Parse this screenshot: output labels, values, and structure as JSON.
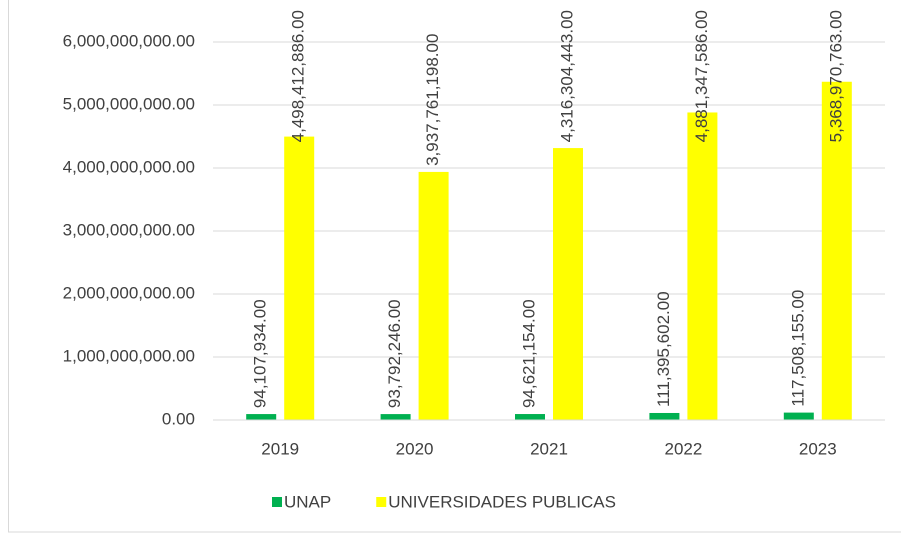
{
  "chart_data": {
    "type": "bar",
    "categories": [
      "2019",
      "2020",
      "2021",
      "2022",
      "2023"
    ],
    "series": [
      {
        "name": "UNAP",
        "color": "#00b050",
        "values": [
          94107934,
          93792246,
          94621154,
          111395602,
          117508155
        ],
        "value_labels": [
          "94,107,934.00",
          "93,792,246.00",
          "94,621,154.00",
          "111,395,602.00",
          "117,508,155.00"
        ]
      },
      {
        "name": "UNIVERSIDADES PUBLICAS",
        "color": "#ffff00",
        "values": [
          4498412886,
          3937761198,
          4316304443,
          4881347586,
          5368970763
        ],
        "value_labels": [
          "4,498,412,886.00",
          "3,937,761,198.00",
          "4,316,304,443.00",
          "4,881,347,586.00",
          "5,368,970,763.00"
        ]
      }
    ],
    "ylim": [
      0,
      6000000000
    ],
    "yticks": [
      {
        "value": 0,
        "label": "0.00"
      },
      {
        "value": 1000000000,
        "label": "1,000,000,000.00"
      },
      {
        "value": 2000000000,
        "label": "2,000,000,000.00"
      },
      {
        "value": 3000000000,
        "label": "3,000,000,000.00"
      },
      {
        "value": 4000000000,
        "label": "4,000,000,000.00"
      },
      {
        "value": 5000000000,
        "label": "5,000,000,000.00"
      },
      {
        "value": 6000000000,
        "label": "6,000,000,000.00"
      }
    ],
    "grid": true,
    "legend": "bottom"
  }
}
